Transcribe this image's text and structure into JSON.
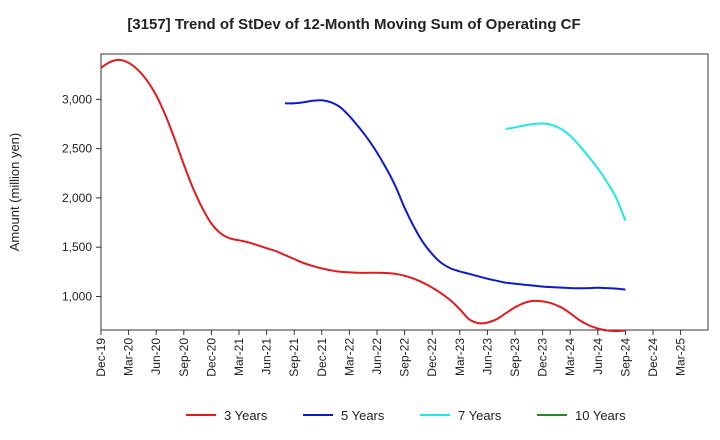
{
  "chart_data": {
    "type": "line",
    "title": "[3157]  Trend of StDev of 12-Month Moving Sum of Operating CF",
    "ylabel": "Amount (million yen)",
    "xlabel": "",
    "ylim": [
      660,
      3460
    ],
    "yticks": [
      1000,
      1500,
      2000,
      2500,
      3000
    ],
    "ytick_labels": [
      "1,000",
      "1,500",
      "2,000",
      "2,500",
      "3,000"
    ],
    "xticks": [
      "Dec-19",
      "Mar-20",
      "Jun-20",
      "Sep-20",
      "Dec-20",
      "Mar-21",
      "Jun-21",
      "Sep-21",
      "Dec-21",
      "Mar-22",
      "Jun-22",
      "Sep-22",
      "Dec-22",
      "Mar-23",
      "Jun-23",
      "Sep-23",
      "Dec-23",
      "Mar-24",
      "Jun-24",
      "Sep-24",
      "Dec-24",
      "Mar-25"
    ],
    "grid": false,
    "legend_position": "bottom",
    "series": [
      {
        "name": "3 Years",
        "color": "#e31a1c",
        "points": [
          {
            "x": "Dec-19",
            "y": 3320
          },
          {
            "x": "Jan-20",
            "y": 3380
          },
          {
            "x": "Feb-20",
            "y": 3400
          },
          {
            "x": "Mar-20",
            "y": 3370
          },
          {
            "x": "Apr-20",
            "y": 3300
          },
          {
            "x": "May-20",
            "y": 3190
          },
          {
            "x": "Jun-20",
            "y": 3040
          },
          {
            "x": "Jul-20",
            "y": 2840
          },
          {
            "x": "Aug-20",
            "y": 2600
          },
          {
            "x": "Sep-20",
            "y": 2340
          },
          {
            "x": "Oct-20",
            "y": 2100
          },
          {
            "x": "Nov-20",
            "y": 1900
          },
          {
            "x": "Dec-20",
            "y": 1740
          },
          {
            "x": "Jan-21",
            "y": 1640
          },
          {
            "x": "Feb-21",
            "y": 1590
          },
          {
            "x": "Mar-21",
            "y": 1570
          },
          {
            "x": "Apr-21",
            "y": 1550
          },
          {
            "x": "May-21",
            "y": 1520
          },
          {
            "x": "Jun-21",
            "y": 1490
          },
          {
            "x": "Jul-21",
            "y": 1460
          },
          {
            "x": "Aug-21",
            "y": 1420
          },
          {
            "x": "Sep-21",
            "y": 1380
          },
          {
            "x": "Oct-21",
            "y": 1340
          },
          {
            "x": "Nov-21",
            "y": 1310
          },
          {
            "x": "Dec-21",
            "y": 1285
          },
          {
            "x": "Jan-22",
            "y": 1265
          },
          {
            "x": "Feb-22",
            "y": 1250
          },
          {
            "x": "Mar-22",
            "y": 1245
          },
          {
            "x": "Apr-22",
            "y": 1240
          },
          {
            "x": "May-22",
            "y": 1240
          },
          {
            "x": "Jun-22",
            "y": 1240
          },
          {
            "x": "Jul-22",
            "y": 1238
          },
          {
            "x": "Aug-22",
            "y": 1230
          },
          {
            "x": "Sep-22",
            "y": 1210
          },
          {
            "x": "Oct-22",
            "y": 1180
          },
          {
            "x": "Nov-22",
            "y": 1140
          },
          {
            "x": "Dec-22",
            "y": 1090
          },
          {
            "x": "Jan-23",
            "y": 1030
          },
          {
            "x": "Feb-23",
            "y": 960
          },
          {
            "x": "Mar-23",
            "y": 870
          },
          {
            "x": "Apr-23",
            "y": 770
          },
          {
            "x": "May-23",
            "y": 730
          },
          {
            "x": "Jun-23",
            "y": 735
          },
          {
            "x": "Jul-23",
            "y": 770
          },
          {
            "x": "Aug-23",
            "y": 830
          },
          {
            "x": "Sep-23",
            "y": 890
          },
          {
            "x": "Oct-23",
            "y": 935
          },
          {
            "x": "Nov-23",
            "y": 955
          },
          {
            "x": "Dec-23",
            "y": 950
          },
          {
            "x": "Jan-24",
            "y": 930
          },
          {
            "x": "Feb-24",
            "y": 890
          },
          {
            "x": "Mar-24",
            "y": 830
          },
          {
            "x": "Apr-24",
            "y": 760
          },
          {
            "x": "May-24",
            "y": 710
          },
          {
            "x": "Jun-24",
            "y": 675
          },
          {
            "x": "Jul-24",
            "y": 655
          },
          {
            "x": "Aug-24",
            "y": 650
          },
          {
            "x": "Sep-24",
            "y": 655
          }
        ]
      },
      {
        "name": "5 Years",
        "color": "#0a1ccc",
        "points": [
          {
            "x": "Aug-21",
            "y": 2960
          },
          {
            "x": "Sep-21",
            "y": 2960
          },
          {
            "x": "Oct-21",
            "y": 2970
          },
          {
            "x": "Nov-21",
            "y": 2985
          },
          {
            "x": "Dec-21",
            "y": 2990
          },
          {
            "x": "Jan-22",
            "y": 2970
          },
          {
            "x": "Feb-22",
            "y": 2920
          },
          {
            "x": "Mar-22",
            "y": 2830
          },
          {
            "x": "Apr-22",
            "y": 2720
          },
          {
            "x": "May-22",
            "y": 2600
          },
          {
            "x": "Jun-22",
            "y": 2460
          },
          {
            "x": "Jul-22",
            "y": 2300
          },
          {
            "x": "Aug-22",
            "y": 2120
          },
          {
            "x": "Sep-22",
            "y": 1900
          },
          {
            "x": "Oct-22",
            "y": 1710
          },
          {
            "x": "Nov-22",
            "y": 1550
          },
          {
            "x": "Dec-22",
            "y": 1430
          },
          {
            "x": "Jan-23",
            "y": 1340
          },
          {
            "x": "Feb-23",
            "y": 1285
          },
          {
            "x": "Mar-23",
            "y": 1255
          },
          {
            "x": "Apr-23",
            "y": 1230
          },
          {
            "x": "May-23",
            "y": 1205
          },
          {
            "x": "Jun-23",
            "y": 1180
          },
          {
            "x": "Jul-23",
            "y": 1160
          },
          {
            "x": "Aug-23",
            "y": 1140
          },
          {
            "x": "Sep-23",
            "y": 1130
          },
          {
            "x": "Oct-23",
            "y": 1120
          },
          {
            "x": "Nov-23",
            "y": 1110
          },
          {
            "x": "Dec-23",
            "y": 1100
          },
          {
            "x": "Jan-24",
            "y": 1095
          },
          {
            "x": "Feb-24",
            "y": 1090
          },
          {
            "x": "Mar-24",
            "y": 1085
          },
          {
            "x": "Apr-24",
            "y": 1083
          },
          {
            "x": "May-24",
            "y": 1085
          },
          {
            "x": "Jun-24",
            "y": 1088
          },
          {
            "x": "Jul-24",
            "y": 1085
          },
          {
            "x": "Aug-24",
            "y": 1080
          },
          {
            "x": "Sep-24",
            "y": 1070
          }
        ]
      },
      {
        "name": "7 Years",
        "color": "#1ee8e8",
        "points": [
          {
            "x": "Aug-23",
            "y": 2700
          },
          {
            "x": "Sep-23",
            "y": 2715
          },
          {
            "x": "Oct-23",
            "y": 2735
          },
          {
            "x": "Nov-23",
            "y": 2750
          },
          {
            "x": "Dec-23",
            "y": 2755
          },
          {
            "x": "Jan-24",
            "y": 2740
          },
          {
            "x": "Feb-24",
            "y": 2700
          },
          {
            "x": "Mar-24",
            "y": 2630
          },
          {
            "x": "Apr-24",
            "y": 2530
          },
          {
            "x": "May-24",
            "y": 2420
          },
          {
            "x": "Jun-24",
            "y": 2300
          },
          {
            "x": "Jul-24",
            "y": 2160
          },
          {
            "x": "Aug-24",
            "y": 2000
          },
          {
            "x": "Sep-24",
            "y": 1770
          }
        ]
      },
      {
        "name": "10 Years",
        "color": "#228b22",
        "points": []
      }
    ]
  }
}
